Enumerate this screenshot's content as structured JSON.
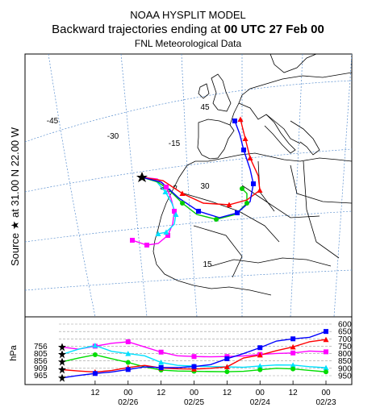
{
  "header": {
    "line1": "NOAA HYSPLIT MODEL",
    "line2_prefix": "Backward trajectories ending at ",
    "line2_time": "00 UTC 27 Feb 00",
    "line3": "FNL  Meteorological Data"
  },
  "side_label": "Source ★ at 31.00 N  22.00 W",
  "hpa_label": "hPa",
  "map": {
    "lon_labels": [
      "-45",
      "-30",
      "-15"
    ],
    "lat_labels": [
      "45",
      "30",
      "15"
    ],
    "source_marker": "star-icon"
  },
  "chart_data": {
    "type": "line",
    "title": "Backward trajectories ending at 00 UTC 27 Feb 00",
    "xlabel": "",
    "ylabel": "hPa",
    "x_tick_labels": [
      "12",
      "00",
      "12",
      "00",
      "12",
      "00",
      "12",
      "00"
    ],
    "x_date_labels": [
      "02/26",
      "02/25",
      "02/24",
      "02/23"
    ],
    "x": [
      0,
      -6,
      -12,
      -18,
      -24,
      -30,
      -36,
      -42,
      -48,
      -54,
      -60,
      -66,
      -72,
      -78,
      -84,
      -90,
      -96
    ],
    "xlim": [
      0,
      -102
    ],
    "ylim": [
      965,
      600
    ],
    "right_axis_ticks": [
      600,
      650,
      700,
      750,
      800,
      850,
      900,
      950
    ],
    "start_level_labels": [
      "756",
      "805",
      "856",
      "909",
      "965"
    ],
    "series": [
      {
        "color": "#ff00ff",
        "values": [
          756,
          770,
          750,
          730,
          720,
          755,
          790,
          815,
          820,
          822,
          820,
          816,
          806,
          799,
          796,
          783,
          788
        ]
      },
      {
        "color": "#00e0ff",
        "values": [
          805,
          770,
          745,
          785,
          800,
          815,
          860,
          880,
          885,
          888,
          890,
          893,
          884,
          877,
          878,
          889,
          896
        ]
      },
      {
        "color": "#00dd00",
        "values": [
          856,
          830,
          808,
          835,
          860,
          890,
          912,
          918,
          920,
          922,
          923,
          920,
          910,
          900,
          904,
          914,
          924
        ]
      },
      {
        "color": "#ff0000",
        "values": [
          909,
          918,
          925,
          915,
          895,
          880,
          898,
          903,
          905,
          900,
          890,
          830,
          810,
          780,
          755,
          720,
          705
        ]
      },
      {
        "color": "#0000ff",
        "values": [
          965,
          948,
          935,
          925,
          908,
          890,
          895,
          895,
          888,
          875,
          835,
          800,
          760,
          715,
          700,
          690,
          650
        ]
      }
    ]
  }
}
